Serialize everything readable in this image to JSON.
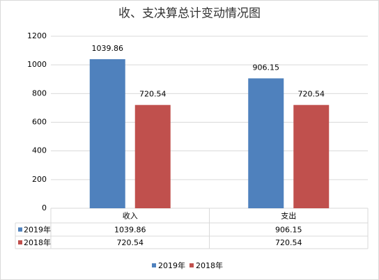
{
  "chart_data": {
    "type": "bar",
    "title": "收、支决算总计变动情况图",
    "categories": [
      "收入",
      "支出"
    ],
    "series": [
      {
        "name": "2019年",
        "color": "#4f81bd",
        "values": [
          1039.86,
          906.15
        ]
      },
      {
        "name": "2018年",
        "color": "#c0504d",
        "values": [
          720.54,
          720.54
        ]
      }
    ],
    "ylim": [
      0,
      1200
    ],
    "yticks": [
      0,
      200,
      400,
      600,
      800,
      1000,
      1200
    ],
    "grid": true,
    "legend": "bottom",
    "data_table": true
  }
}
